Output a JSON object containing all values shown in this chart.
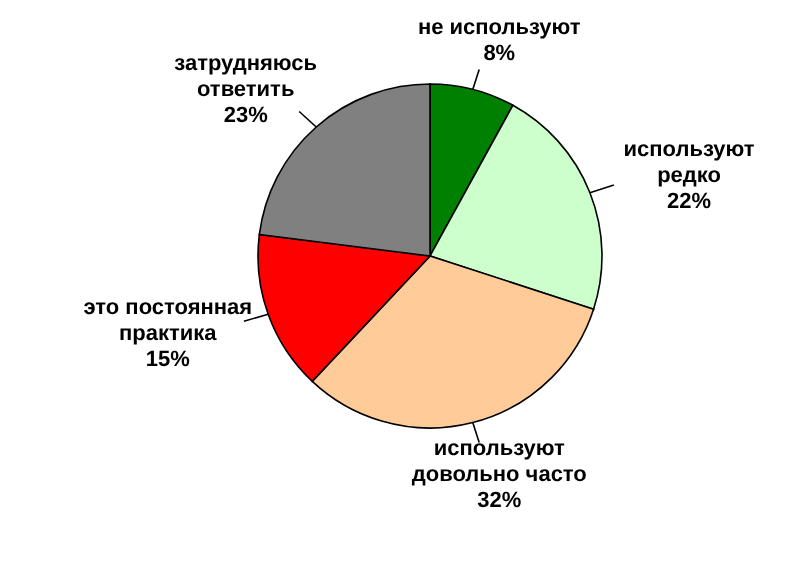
{
  "chart_data": {
    "type": "pie",
    "categories": [
      "не используют",
      "используют редко",
      "используют довольно часто",
      "это постоянная практика",
      "затрудняюсь ответить"
    ],
    "values": [
      8,
      22,
      32,
      15,
      23
    ],
    "value_labels": [
      "8%",
      "22%",
      "32%",
      "15%",
      "23%"
    ],
    "colors": [
      "#008000",
      "#ccffcc",
      "#ffcc99",
      "#ff0000",
      "#808080"
    ]
  }
}
